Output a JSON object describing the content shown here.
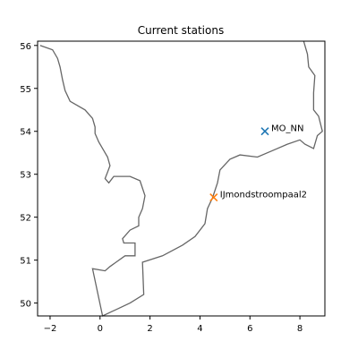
{
  "map": {
    "title": "Current stations",
    "x_range": [
      -2.5,
      9.0
    ],
    "y_range": [
      49.7,
      56.1
    ],
    "x_ticks": [
      -2,
      0,
      2,
      4,
      6,
      8
    ],
    "y_ticks": [
      50,
      51,
      52,
      53,
      54,
      55,
      56
    ],
    "coastline_color": "#666666",
    "coastline": [
      [
        -2.4,
        56.0
      ],
      [
        -1.9,
        55.9
      ],
      [
        -1.7,
        55.7
      ],
      [
        -1.6,
        55.5
      ],
      [
        -1.5,
        55.2
      ],
      [
        -1.4,
        54.95
      ],
      [
        -1.2,
        54.7
      ],
      [
        -0.6,
        54.5
      ],
      [
        -0.3,
        54.3
      ],
      [
        -0.2,
        54.1
      ],
      [
        -0.2,
        53.95
      ],
      [
        -0.05,
        53.75
      ],
      [
        0.15,
        53.55
      ],
      [
        0.3,
        53.4
      ],
      [
        0.4,
        53.2
      ],
      [
        0.3,
        53.05
      ],
      [
        0.2,
        52.9
      ],
      [
        0.35,
        52.8
      ],
      [
        0.55,
        52.95
      ],
      [
        1.2,
        52.95
      ],
      [
        1.6,
        52.85
      ],
      [
        1.8,
        52.5
      ],
      [
        1.7,
        52.2
      ],
      [
        1.55,
        52.0
      ],
      [
        1.55,
        51.8
      ],
      [
        1.2,
        51.7
      ],
      [
        0.9,
        51.5
      ],
      [
        0.95,
        51.4
      ],
      [
        1.4,
        51.4
      ],
      [
        1.4,
        51.1
      ],
      [
        1.0,
        51.1
      ],
      [
        0.4,
        50.85
      ],
      [
        0.2,
        50.75
      ],
      [
        -0.3,
        50.8
      ],
      [
        0.1,
        49.7
      ],
      [
        1.2,
        50.0
      ],
      [
        1.75,
        50.2
      ],
      [
        1.7,
        50.95
      ],
      [
        2.5,
        51.1
      ],
      [
        3.3,
        51.35
      ],
      [
        3.8,
        51.55
      ],
      [
        4.2,
        51.85
      ],
      [
        4.3,
        52.2
      ],
      [
        4.5,
        52.45
      ],
      [
        4.7,
        52.8
      ],
      [
        4.8,
        53.1
      ],
      [
        5.2,
        53.35
      ],
      [
        5.6,
        53.45
      ],
      [
        6.3,
        53.4
      ],
      [
        6.9,
        53.55
      ],
      [
        7.5,
        53.7
      ],
      [
        8.0,
        53.8
      ],
      [
        8.2,
        53.7
      ],
      [
        8.55,
        53.6
      ],
      [
        8.7,
        53.9
      ],
      [
        8.9,
        54.0
      ],
      [
        8.75,
        54.35
      ],
      [
        8.55,
        54.5
      ],
      [
        8.55,
        54.9
      ],
      [
        8.6,
        55.3
      ],
      [
        8.35,
        55.5
      ],
      [
        8.3,
        55.8
      ],
      [
        8.15,
        56.1
      ]
    ],
    "stations": [
      {
        "name": "MO_NN",
        "lon": 6.6,
        "lat": 54.0,
        "color": "#1f77b4"
      },
      {
        "name": "IJmondstroompaal2",
        "lon": 4.55,
        "lat": 52.46,
        "color": "#ff7f0e"
      }
    ]
  }
}
